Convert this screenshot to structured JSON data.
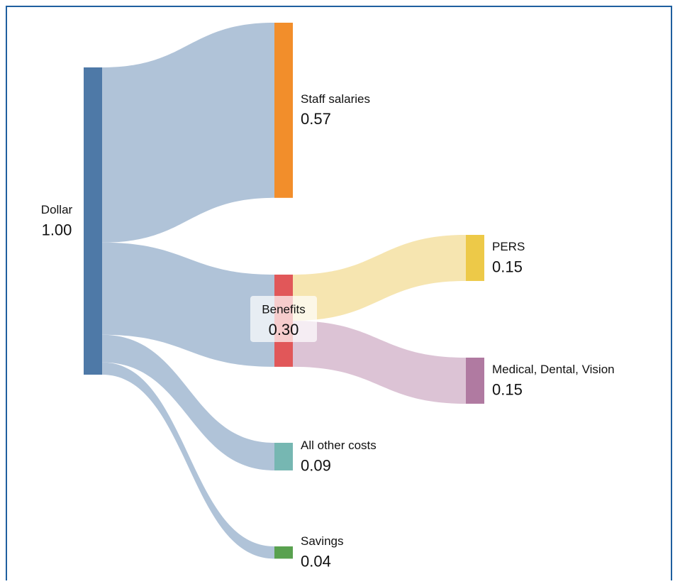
{
  "chart_data": {
    "type": "sankey",
    "nodes": {
      "names": [
        "Dollar",
        "Staff salaries",
        "Benefits",
        "PERS",
        "Medical, Dental, Vision",
        "All other costs",
        "Savings"
      ],
      "values": [
        1,
        0.57,
        0.3,
        0.15,
        0.15,
        0.09,
        0.04
      ],
      "value_labels": [
        "1.00",
        "0.57",
        "0.30",
        "0.15",
        "0.15",
        "0.09",
        "0.04"
      ],
      "colors": [
        "#4e79a7",
        "#f28e2b",
        "#e15759",
        "#edc948",
        "#b07aa1",
        "#76b7b2",
        "#59a14f"
      ]
    },
    "links": {
      "source": [
        0,
        0,
        0,
        0,
        2,
        2
      ],
      "target": [
        1,
        2,
        5,
        6,
        3,
        4
      ],
      "values": [
        0.57,
        0.3,
        0.09,
        0.04,
        0.15,
        0.15
      ],
      "colors": [
        "#b0c3d8",
        "#b0c3d8",
        "#b0c3d8",
        "#b0c3d8",
        "#f6e5b0",
        "#dcc3d5"
      ]
    }
  }
}
